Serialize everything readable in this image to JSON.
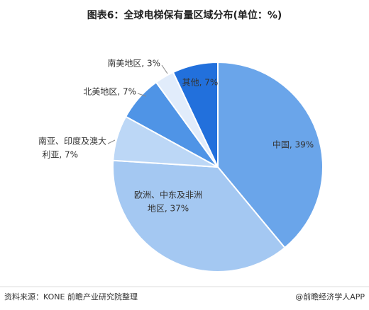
{
  "chart_data": {
    "type": "pie",
    "title": "图表6：全球电梯保有量区域分布(单位：%)",
    "values": [
      39,
      37,
      7,
      7,
      3,
      7
    ],
    "value_labels": [
      [
        "中国, 39%"
      ],
      [
        "欧洲、中东及非洲",
        "地区, 37%"
      ],
      [
        "南亚、印度及澳大",
        "利亚, 7%"
      ],
      [
        "北美地区, 7%"
      ],
      [
        "南美地区, 3%"
      ],
      [
        "其他, 7%"
      ]
    ],
    "colors": [
      "#6aa5ea",
      "#a4c8f2",
      "#bcd7f6",
      "#4f94e6",
      "#e1ecfb",
      "#2270dc"
    ]
  },
  "source": "资料来源：KONE 前瞻产业研究院整理",
  "credit": "@前瞻经济学人APP"
}
